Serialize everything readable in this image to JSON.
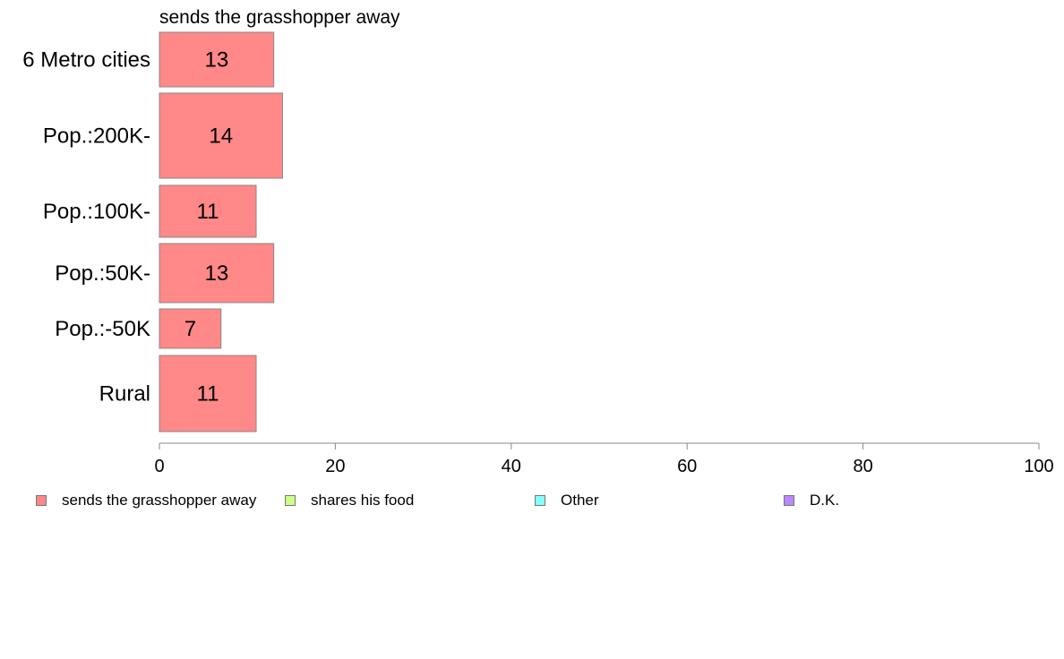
{
  "chart_data": {
    "type": "bar",
    "orientation": "horizontal",
    "title": "sends the grasshopper away",
    "categories": [
      "6 Metro cities",
      "Pop.:200K-",
      "Pop.:100K-",
      "Pop.:50K-",
      "Pop.:-50K",
      "Rural"
    ],
    "series": [
      {
        "name": "sends the grasshopper away",
        "values": [
          13,
          14,
          11,
          13,
          7,
          11
        ],
        "color": "#ff8888"
      }
    ],
    "xlim": [
      0,
      100
    ],
    "xticks": [
      0,
      20,
      40,
      60,
      80,
      100
    ],
    "grid": false,
    "legend_position": "bottom",
    "legend": [
      {
        "label": "sends the grasshopper away",
        "color": "#ff8888"
      },
      {
        "label": "shares his food",
        "color": "#ccff88"
      },
      {
        "label": "Other",
        "color": "#88ffff"
      },
      {
        "label": "D.K.",
        "color": "#bb88ff"
      }
    ]
  }
}
